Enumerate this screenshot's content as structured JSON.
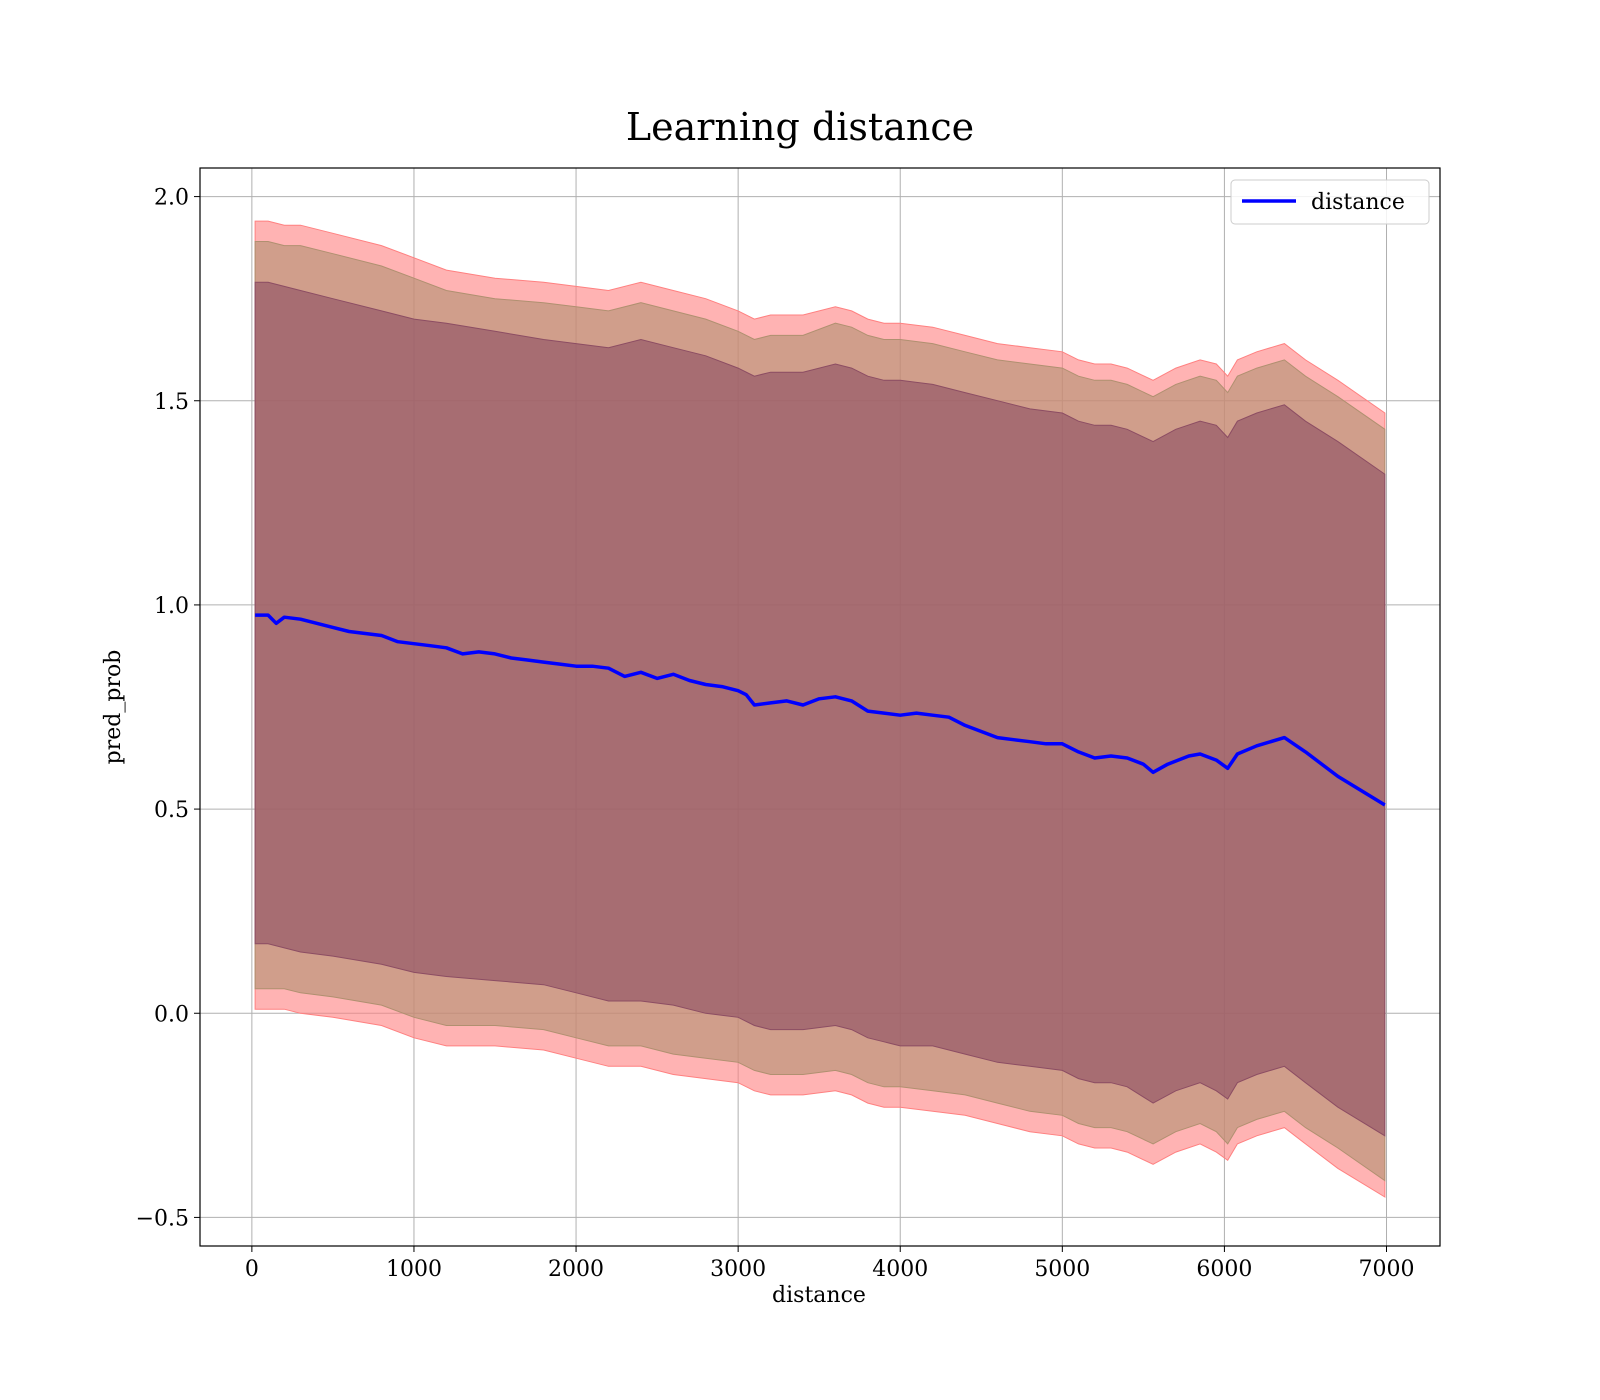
{
  "chart_data": {
    "type": "line",
    "title": "Learning distance",
    "xlabel": "distance",
    "ylabel": "pred_prob",
    "xlim": [
      -320,
      7330
    ],
    "ylim": [
      -0.57,
      2.07
    ],
    "xticks": [
      0,
      1000,
      2000,
      3000,
      4000,
      5000,
      6000,
      7000
    ],
    "xtick_labels": [
      "0",
      "1000",
      "2000",
      "3000",
      "4000",
      "5000",
      "6000",
      "7000"
    ],
    "yticks": [
      -0.5,
      0.0,
      0.5,
      1.0,
      1.5,
      2.0
    ],
    "ytick_labels": [
      "−0.5",
      "0.0",
      "0.5",
      "1.0",
      "1.5",
      "2.0"
    ],
    "grid": true,
    "legend_position": "top-right",
    "series": [
      {
        "name": "distance",
        "color": "#0000ff",
        "x": [
          20,
          100,
          150,
          200,
          300,
          400,
          500,
          600,
          700,
          800,
          900,
          1000,
          1100,
          1200,
          1300,
          1400,
          1500,
          1600,
          1700,
          1800,
          1900,
          2000,
          2100,
          2200,
          2300,
          2400,
          2500,
          2600,
          2700,
          2800,
          2900,
          3000,
          3050,
          3100,
          3200,
          3300,
          3400,
          3500,
          3600,
          3700,
          3800,
          3900,
          4000,
          4100,
          4200,
          4300,
          4400,
          4500,
          4600,
          4700,
          4800,
          4900,
          5000,
          5100,
          5200,
          5300,
          5400,
          5500,
          5560,
          5650,
          5780,
          5850,
          5950,
          6020,
          6080,
          6200,
          6370,
          6500,
          6700,
          6990
        ],
        "y": [
          0.975,
          0.975,
          0.955,
          0.97,
          0.965,
          0.955,
          0.945,
          0.935,
          0.93,
          0.925,
          0.91,
          0.905,
          0.9,
          0.895,
          0.88,
          0.885,
          0.88,
          0.87,
          0.865,
          0.86,
          0.855,
          0.85,
          0.85,
          0.845,
          0.825,
          0.835,
          0.82,
          0.83,
          0.815,
          0.805,
          0.8,
          0.79,
          0.78,
          0.755,
          0.76,
          0.765,
          0.755,
          0.77,
          0.775,
          0.765,
          0.74,
          0.735,
          0.73,
          0.735,
          0.73,
          0.725,
          0.705,
          0.69,
          0.675,
          0.67,
          0.665,
          0.66,
          0.66,
          0.64,
          0.625,
          0.63,
          0.625,
          0.61,
          0.59,
          0.61,
          0.63,
          0.635,
          0.62,
          0.6,
          0.635,
          0.655,
          0.675,
          0.64,
          0.58,
          0.51
        ]
      }
    ],
    "bands": [
      {
        "color": "#ff8080",
        "x": [
          20,
          100,
          200,
          300,
          500,
          800,
          1000,
          1200,
          1500,
          1800,
          2000,
          2200,
          2400,
          2600,
          2800,
          3000,
          3100,
          3200,
          3400,
          3600,
          3700,
          3800,
          3900,
          4000,
          4200,
          4400,
          4600,
          4800,
          5000,
          5100,
          5200,
          5300,
          5400,
          5560,
          5700,
          5850,
          5950,
          6020,
          6080,
          6200,
          6370,
          6500,
          6700,
          6990
        ],
        "upper": [
          1.94,
          1.94,
          1.93,
          1.93,
          1.91,
          1.88,
          1.85,
          1.82,
          1.8,
          1.79,
          1.78,
          1.77,
          1.79,
          1.77,
          1.75,
          1.72,
          1.7,
          1.71,
          1.71,
          1.73,
          1.72,
          1.7,
          1.69,
          1.69,
          1.68,
          1.66,
          1.64,
          1.63,
          1.62,
          1.6,
          1.59,
          1.59,
          1.58,
          1.55,
          1.58,
          1.6,
          1.59,
          1.56,
          1.6,
          1.62,
          1.64,
          1.6,
          1.55,
          1.47
        ],
        "lower": [
          0.01,
          0.01,
          0.01,
          0.0,
          -0.01,
          -0.03,
          -0.06,
          -0.08,
          -0.08,
          -0.09,
          -0.11,
          -0.13,
          -0.13,
          -0.15,
          -0.16,
          -0.17,
          -0.19,
          -0.2,
          -0.2,
          -0.19,
          -0.2,
          -0.22,
          -0.23,
          -0.23,
          -0.24,
          -0.25,
          -0.27,
          -0.29,
          -0.3,
          -0.32,
          -0.33,
          -0.33,
          -0.34,
          -0.37,
          -0.34,
          -0.32,
          -0.34,
          -0.36,
          -0.32,
          -0.3,
          -0.28,
          -0.32,
          -0.38,
          -0.45
        ]
      },
      {
        "color": "#b09070",
        "x": [
          20,
          100,
          200,
          300,
          500,
          800,
          1000,
          1200,
          1500,
          1800,
          2000,
          2200,
          2400,
          2600,
          2800,
          3000,
          3100,
          3200,
          3400,
          3600,
          3700,
          3800,
          3900,
          4000,
          4200,
          4400,
          4600,
          4800,
          5000,
          5100,
          5200,
          5300,
          5400,
          5560,
          5700,
          5850,
          5950,
          6020,
          6080,
          6200,
          6370,
          6500,
          6700,
          6990
        ],
        "upper": [
          1.89,
          1.89,
          1.88,
          1.88,
          1.86,
          1.83,
          1.8,
          1.77,
          1.75,
          1.74,
          1.73,
          1.72,
          1.74,
          1.72,
          1.7,
          1.67,
          1.65,
          1.66,
          1.66,
          1.69,
          1.68,
          1.66,
          1.65,
          1.65,
          1.64,
          1.62,
          1.6,
          1.59,
          1.58,
          1.56,
          1.55,
          1.55,
          1.54,
          1.51,
          1.54,
          1.56,
          1.55,
          1.52,
          1.56,
          1.58,
          1.6,
          1.56,
          1.51,
          1.43
        ],
        "lower": [
          0.06,
          0.06,
          0.06,
          0.05,
          0.04,
          0.02,
          -0.01,
          -0.03,
          -0.03,
          -0.04,
          -0.06,
          -0.08,
          -0.08,
          -0.1,
          -0.11,
          -0.12,
          -0.14,
          -0.15,
          -0.15,
          -0.14,
          -0.15,
          -0.17,
          -0.18,
          -0.18,
          -0.19,
          -0.2,
          -0.22,
          -0.24,
          -0.25,
          -0.27,
          -0.28,
          -0.28,
          -0.29,
          -0.32,
          -0.29,
          -0.27,
          -0.29,
          -0.32,
          -0.28,
          -0.26,
          -0.24,
          -0.28,
          -0.33,
          -0.41
        ]
      },
      {
        "color": "#8c4d63",
        "x": [
          20,
          100,
          200,
          300,
          500,
          800,
          1000,
          1200,
          1500,
          1800,
          2000,
          2200,
          2400,
          2600,
          2800,
          3000,
          3100,
          3200,
          3400,
          3600,
          3700,
          3800,
          3900,
          4000,
          4200,
          4400,
          4600,
          4800,
          5000,
          5100,
          5200,
          5300,
          5400,
          5560,
          5700,
          5850,
          5950,
          6020,
          6080,
          6200,
          6370,
          6500,
          6700,
          6990
        ],
        "upper": [
          1.79,
          1.79,
          1.78,
          1.77,
          1.75,
          1.72,
          1.7,
          1.69,
          1.67,
          1.65,
          1.64,
          1.63,
          1.65,
          1.63,
          1.61,
          1.58,
          1.56,
          1.57,
          1.57,
          1.59,
          1.58,
          1.56,
          1.55,
          1.55,
          1.54,
          1.52,
          1.5,
          1.48,
          1.47,
          1.45,
          1.44,
          1.44,
          1.43,
          1.4,
          1.43,
          1.45,
          1.44,
          1.41,
          1.45,
          1.47,
          1.49,
          1.45,
          1.4,
          1.32
        ],
        "lower": [
          0.17,
          0.17,
          0.16,
          0.15,
          0.14,
          0.12,
          0.1,
          0.09,
          0.08,
          0.07,
          0.05,
          0.03,
          0.03,
          0.02,
          0.0,
          -0.01,
          -0.03,
          -0.04,
          -0.04,
          -0.03,
          -0.04,
          -0.06,
          -0.07,
          -0.08,
          -0.08,
          -0.1,
          -0.12,
          -0.13,
          -0.14,
          -0.16,
          -0.17,
          -0.17,
          -0.18,
          -0.22,
          -0.19,
          -0.17,
          -0.19,
          -0.21,
          -0.17,
          -0.15,
          -0.13,
          -0.17,
          -0.23,
          -0.3
        ]
      }
    ]
  }
}
